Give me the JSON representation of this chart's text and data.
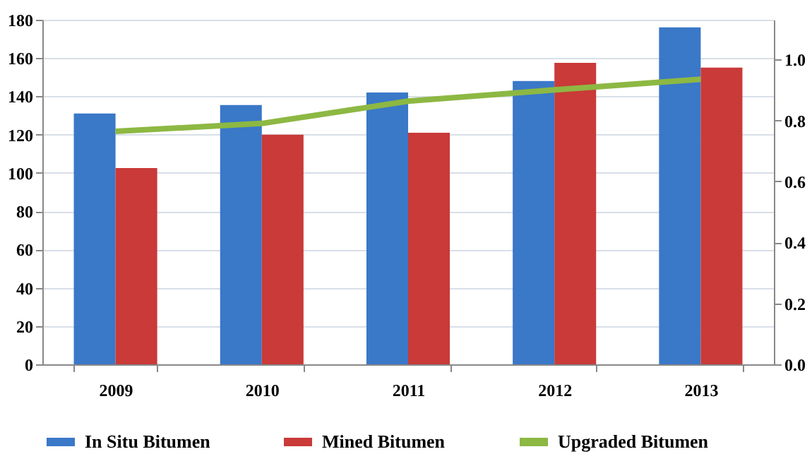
{
  "chart_data": {
    "type": "bar",
    "categories": [
      "2009",
      "2010",
      "2011",
      "2012",
      "2013"
    ],
    "series": [
      {
        "name": "In Situ Bitumen",
        "color": "#3a78c8",
        "values": [
          131,
          135.5,
          142,
          148,
          176
        ]
      },
      {
        "name": "Mined Bitumen",
        "color": "#c93a38",
        "values": [
          102.5,
          120,
          121,
          157.5,
          155
        ]
      },
      {
        "name": "Upgraded Bitumen",
        "color": "#8db843",
        "type": "line",
        "axis": "y2",
        "values": [
          0.764,
          0.79,
          0.863,
          0.9,
          0.935
        ]
      }
    ],
    "ylim": [
      0,
      180
    ],
    "yticks": [
      0,
      20,
      40,
      60,
      80,
      100,
      120,
      140,
      160,
      180
    ],
    "y2lim": [
      0,
      1.13
    ],
    "y2ticks": [
      {
        "value": 0,
        "label": "0.0"
      },
      {
        "value": 0.2,
        "label": "0.2"
      },
      {
        "value": 0.4,
        "label": "0.4"
      },
      {
        "value": 0.6,
        "label": "0.6"
      },
      {
        "value": 0.8,
        "label": "0.8"
      },
      {
        "value": 1.0,
        "label": "1.0"
      }
    ],
    "grid": "y",
    "legend": "bottom",
    "marker": "none",
    "line_style": "solid"
  }
}
